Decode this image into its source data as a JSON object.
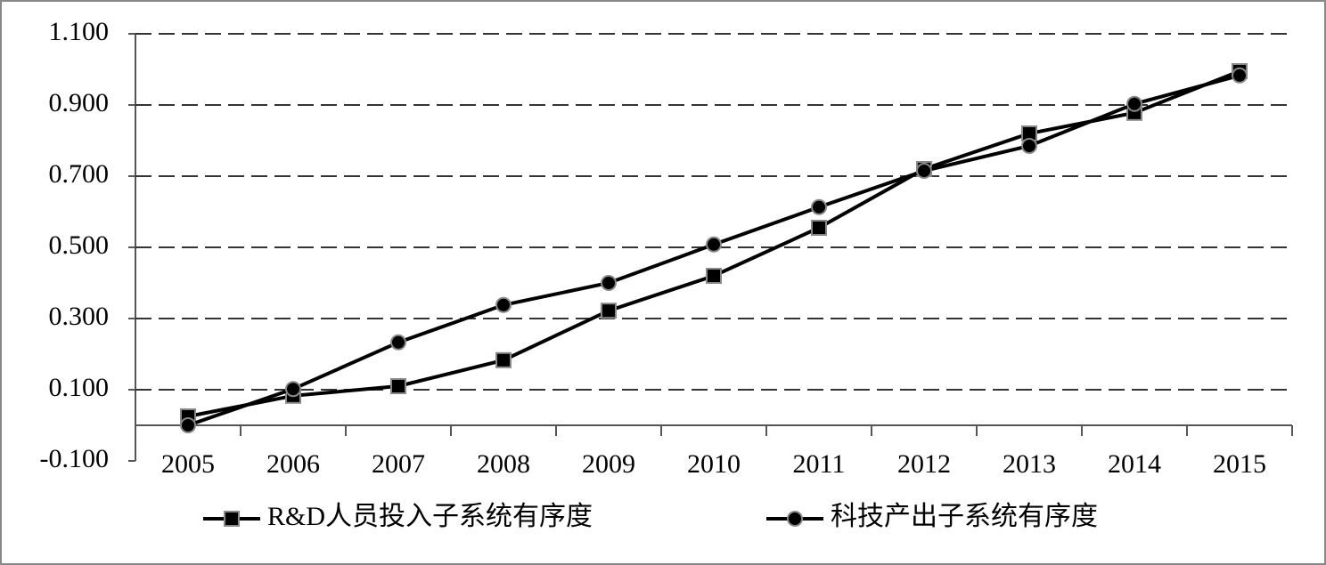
{
  "chart_data": {
    "type": "line",
    "categories": [
      "2005",
      "2006",
      "2007",
      "2008",
      "2009",
      "2010",
      "2011",
      "2012",
      "2013",
      "2014",
      "2015"
    ],
    "series": [
      {
        "name": "R&D人员投入子系统有序度",
        "color": "#000000",
        "marker": "square",
        "values": [
          0.025,
          0.083,
          0.11,
          0.183,
          0.322,
          0.42,
          0.555,
          0.72,
          0.82,
          0.878,
          0.995
        ]
      },
      {
        "name": "科技产出子系统有序度",
        "color": "#000000",
        "marker": "circle",
        "values": [
          0.0,
          0.102,
          0.233,
          0.338,
          0.4,
          0.508,
          0.613,
          0.715,
          0.785,
          0.903,
          0.983
        ]
      }
    ],
    "ylim": [
      -0.1,
      1.1
    ],
    "yticks": [
      {
        "value": -0.1,
        "label": "-0.100"
      },
      {
        "value": 0.1,
        "label": "0.100"
      },
      {
        "value": 0.3,
        "label": "0.300"
      },
      {
        "value": 0.5,
        "label": "0.500"
      },
      {
        "value": 0.7,
        "label": "0.700"
      },
      {
        "value": 0.9,
        "label": "0.900"
      },
      {
        "value": 1.1,
        "label": "1.100"
      }
    ],
    "grid": true,
    "legend": "bottom"
  }
}
